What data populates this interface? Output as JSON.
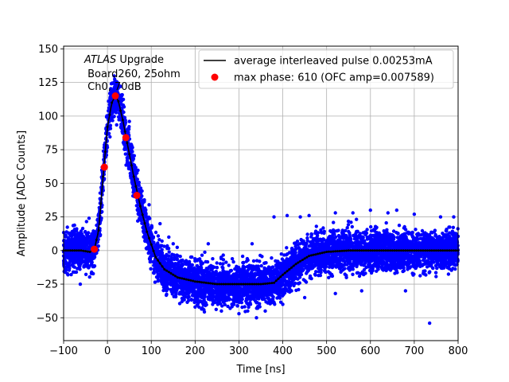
{
  "chart_data": {
    "type": "scatter",
    "title": "",
    "xlabel": "Time [ns]",
    "ylabel": "Amplitude [ADC Counts]",
    "xlim": [
      -100,
      800
    ],
    "ylim": [
      -67,
      152
    ],
    "grid": true,
    "x_ticks": [
      -100,
      0,
      100,
      200,
      300,
      400,
      500,
      600,
      700,
      800
    ],
    "y_ticks": [
      -50,
      -25,
      0,
      25,
      50,
      75,
      100,
      125,
      150
    ],
    "x_tick_labels": [
      "−100",
      "0",
      "100",
      "200",
      "300",
      "400",
      "500",
      "600",
      "700",
      "800"
    ],
    "y_tick_labels": [
      "−50",
      "−25",
      "0",
      "25",
      "50",
      "75",
      "100",
      "125",
      "150"
    ],
    "annotation": {
      "italic": "ATLAS",
      "suffix": " Upgrade",
      "line2": " Board260, 25ohm",
      "line3": " Ch0, 70dB"
    },
    "legend": {
      "placement": "top-right",
      "entries": [
        {
          "label": "average interleaved pulse 0.00253mA",
          "marker": "line",
          "color": "#000000"
        },
        {
          "label": "max phase: 610 (OFC amp=0.007589)",
          "marker": "circle",
          "color": "#ff0000"
        }
      ]
    },
    "colors": {
      "samples": "#0000ff",
      "average": "#000000",
      "max_phase": "#ff0000"
    },
    "series": [
      {
        "name": "",
        "kind": "scatter-band",
        "color": "#0000ff",
        "note_noise_halfwidth": 18,
        "x": [
          -100,
          -60,
          -40,
          -30,
          -20,
          -10,
          0,
          10,
          18,
          25,
          35,
          45,
          60,
          75,
          90,
          110,
          130,
          160,
          200,
          250,
          300,
          350,
          380,
          400,
          430,
          460,
          500,
          550,
          600,
          650,
          700,
          750,
          800
        ],
        "y": [
          0,
          0,
          -1,
          1,
          15,
          55,
          92,
          110,
          115,
          111,
          97,
          80,
          55,
          33,
          14,
          -5,
          -14,
          -20,
          -23,
          -25,
          -25,
          -25,
          -24,
          -18,
          -10,
          -4,
          -1,
          0,
          0,
          0,
          0,
          0,
          0
        ]
      },
      {
        "name": "average interleaved pulse 0.00253mA",
        "kind": "line",
        "color": "#000000",
        "x": [
          -100,
          -60,
          -40,
          -30,
          -20,
          -10,
          0,
          10,
          18,
          25,
          35,
          45,
          60,
          75,
          90,
          110,
          130,
          160,
          200,
          250,
          300,
          350,
          380,
          400,
          430,
          460,
          500,
          550,
          600,
          650,
          700,
          750,
          800
        ],
        "y": [
          0,
          0,
          -1,
          1,
          15,
          55,
          92,
          110,
          115,
          111,
          97,
          80,
          55,
          33,
          14,
          -5,
          -14,
          -20,
          -23,
          -25,
          -25,
          -25,
          -24,
          -18,
          -10,
          -4,
          -1,
          0,
          0,
          0,
          0,
          0,
          0
        ]
      },
      {
        "name": "max phase: 610 (OFC amp=0.007589)",
        "kind": "points",
        "color": "#ff0000",
        "x": [
          -30,
          -7,
          18,
          42,
          67
        ],
        "y": [
          1,
          62,
          115,
          84,
          41
        ]
      }
    ],
    "outliers": {
      "x": [
        -62,
        -42,
        30,
        50,
        95,
        120,
        140,
        170,
        200,
        220,
        240,
        260,
        280,
        300,
        320,
        340,
        360,
        400,
        420,
        440,
        460,
        520,
        560,
        600,
        640,
        660,
        700,
        735,
        760,
        790,
        150,
        230,
        330,
        450,
        520,
        580,
        680,
        380,
        410
      ],
      "y": [
        -25,
        24,
        122,
        96,
        34,
        20,
        10,
        -38,
        -42,
        -44,
        -40,
        -45,
        -43,
        -47,
        -45,
        -50,
        -45,
        -40,
        -30,
        25,
        26,
        28,
        28,
        30,
        28,
        30,
        27,
        -54,
        25,
        25,
        5,
        5,
        5,
        -35,
        -32,
        -30,
        -30,
        25,
        26
      ]
    }
  }
}
